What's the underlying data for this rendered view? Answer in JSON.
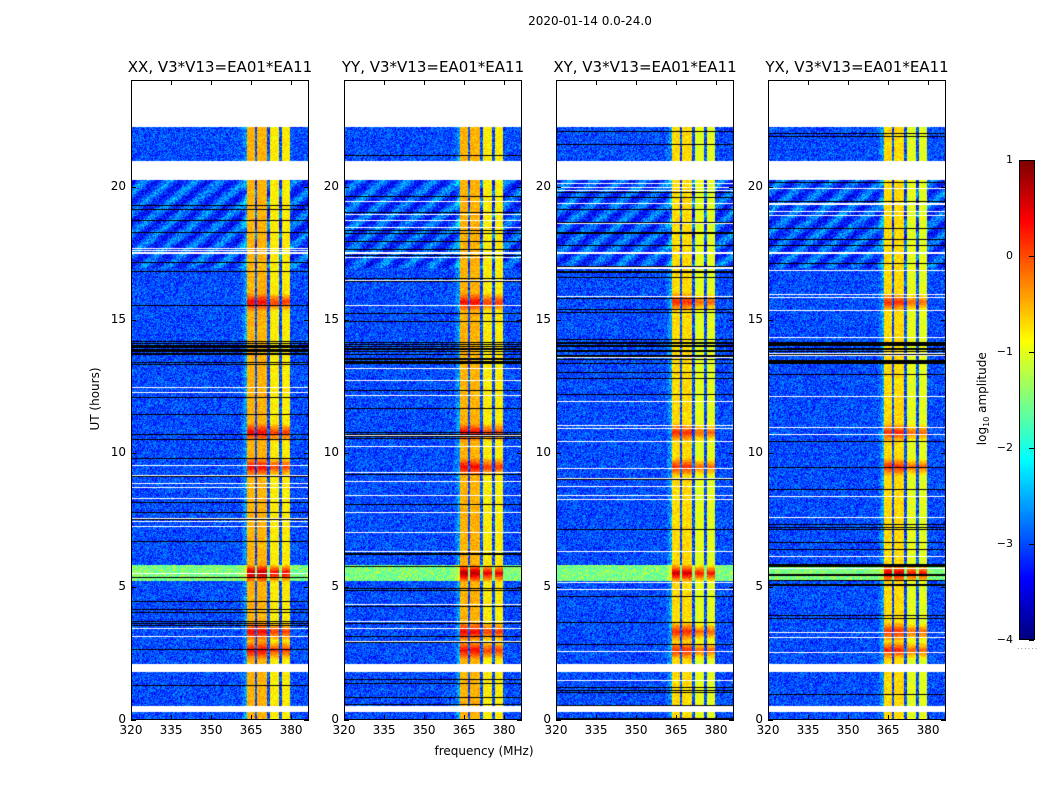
{
  "figure": {
    "suptitle": "2020-01-14 0.0-24.0",
    "xlabel": "frequency (MHz)",
    "ylabel": "UT (hours)"
  },
  "chart_data": {
    "type": "heatmap",
    "title": "2020-01-14 0.0-24.0",
    "xlabel": "frequency (MHz)",
    "ylabel": "UT (hours)",
    "xlim": [
      320,
      386.7
    ],
    "ylim": [
      0,
      24
    ],
    "xticks": [
      320,
      335,
      350,
      365,
      380
    ],
    "yticks": [
      0,
      5,
      10,
      15,
      20
    ],
    "colormap": "jet",
    "color_range": [
      -4,
      1
    ],
    "grid": false,
    "panels": [
      {
        "polarization": "XX",
        "title": "XX, V3*V13=EA01*EA11"
      },
      {
        "polarization": "YY",
        "title": "YY, V3*V13=EA01*EA11"
      },
      {
        "polarization": "XY",
        "title": "XY, V3*V13=EA01*EA11"
      },
      {
        "polarization": "YX",
        "title": "YX, V3*V13=EA01*EA11"
      }
    ],
    "features": {
      "no_data_hours": [
        [
          22.3,
          24.0
        ],
        [
          20.3,
          21.0
        ],
        [
          17.5,
          17.6
        ],
        [
          1.8,
          2.1
        ],
        [
          0.3,
          0.5
        ]
      ],
      "strong_rfi_bands_MHz": [
        [
          363.5,
          366.5
        ],
        [
          367,
          371
        ],
        [
          372,
          375.5
        ],
        [
          376.5,
          379.5
        ]
      ],
      "rfi_peak_hours": [
        5.5,
        2.6,
        3.3,
        9.5,
        10.8,
        15.7
      ],
      "background_log10_amplitude": -3.0,
      "band_log10_amplitude": -0.5,
      "peak_log10_amplitude": 0.8
    },
    "colorbar": {
      "label": "log10 amplitude",
      "ticks": [
        1,
        0,
        -1,
        -2,
        -3,
        -4
      ],
      "tick_labels": [
        "1",
        "0",
        "−1",
        "−2",
        "−3",
        "−4"
      ]
    }
  },
  "labels": {
    "xtick_labels": [
      "320",
      "335",
      "350",
      "365",
      "380"
    ],
    "ytick_labels": [
      "0",
      "5",
      "10",
      "15",
      "20"
    ],
    "cbar_label_main": "log",
    "cbar_label_sub": "10",
    "cbar_label_rest": " amplitude",
    "cbar_dots": "......"
  }
}
